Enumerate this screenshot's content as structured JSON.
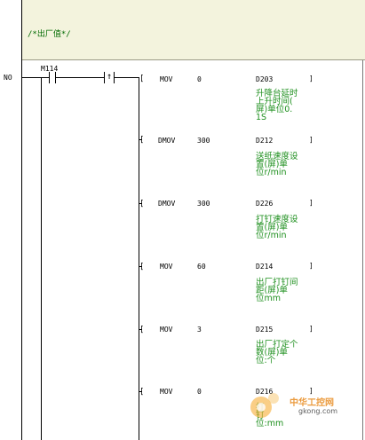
{
  "comment": "/*出厂值*/",
  "row_number": "NO",
  "contact": {
    "label": "M114"
  },
  "pulse_symbol": "↑",
  "instructions": [
    {
      "op": "MOV",
      "src": "0",
      "dst": "D203",
      "close": "]",
      "note": "升降台延时\n上升时间(\n屏)单位0.\n1S"
    },
    {
      "op": "DMOV",
      "src": "300",
      "dst": "D212",
      "close": "]",
      "note": "送纸速度设\n置(屏)单\n位r/min"
    },
    {
      "op": "DMOV",
      "src": "300",
      "dst": "D226",
      "close": "]",
      "note": "打钉速度设\n置(屏)单\n位r/min"
    },
    {
      "op": "MOV",
      "src": "60",
      "dst": "D214",
      "close": "]",
      "note": "出厂打钉间\n距(屏)单\n位mm"
    },
    {
      "op": "MOV",
      "src": "3",
      "dst": "D215",
      "close": "]",
      "note": "出厂打定个\n数(屏)单\n位:个"
    },
    {
      "op": "MOV",
      "src": "0",
      "dst": "D216",
      "close": "]",
      "note": "打\n钉\n位:mm"
    }
  ],
  "watermark": {
    "line1": "中华工控网",
    "line2": "gkong.com"
  }
}
